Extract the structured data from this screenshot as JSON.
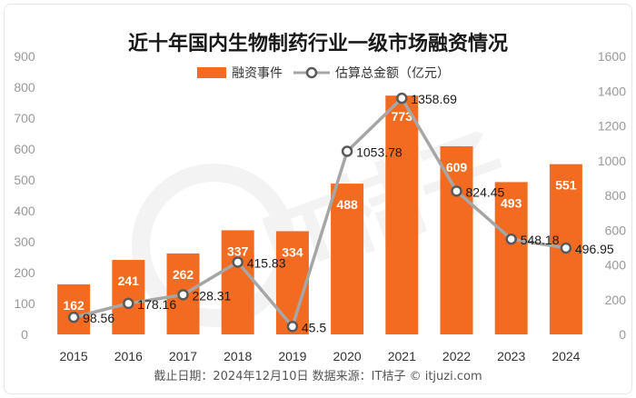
{
  "chart_data": {
    "type": "bar",
    "title": "近十年国内生物制药行业一级市场融资情况",
    "categories": [
      "2015",
      "2016",
      "2017",
      "2018",
      "2019",
      "2020",
      "2021",
      "2022",
      "2023",
      "2024"
    ],
    "series": [
      {
        "name": "融资事件",
        "type": "bar",
        "axis": "left",
        "values": [
          162,
          241,
          262,
          337,
          334,
          488,
          773,
          609,
          493,
          551
        ]
      },
      {
        "name": "估算总金额（亿元）",
        "type": "line",
        "axis": "right",
        "values": [
          98.56,
          178.16,
          228.31,
          415.83,
          45.5,
          1053.78,
          1358.69,
          824.45,
          548.18,
          496.95
        ]
      }
    ],
    "ylim_left": [
      0,
      900
    ],
    "ylim_right": [
      0,
      1600
    ],
    "yticks_left": [
      "0",
      "100",
      "200",
      "300",
      "400",
      "500",
      "600",
      "700",
      "800",
      "900"
    ],
    "yticks_right": [
      "0",
      "200",
      "400",
      "600",
      "800",
      "1000",
      "1200",
      "1400",
      "1600"
    ],
    "grid": false,
    "legend_position": "top-center",
    "colors": {
      "bar": "#f36b21",
      "line": "#a6a6a6",
      "marker_fill": "#ffffff",
      "marker_stroke": "#5a5a5a"
    }
  },
  "footer": {
    "text": "截止日期：2024年12月10日    数据来源：IT桔子 © itjuzi.com"
  },
  "watermark": {
    "text": "IT桔子"
  }
}
